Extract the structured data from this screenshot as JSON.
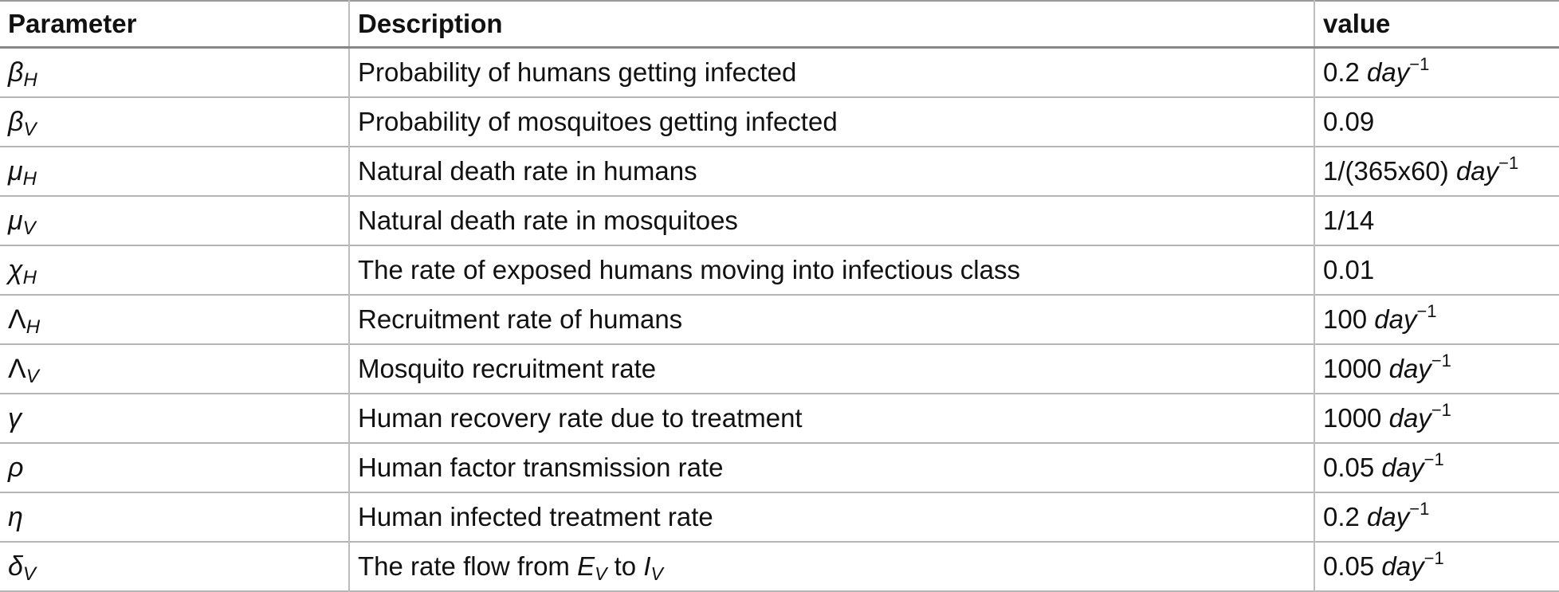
{
  "table": {
    "headers": {
      "parameter": "Parameter",
      "description": "Description",
      "value": "value"
    },
    "rows": [
      {
        "symbol": "β",
        "subscript": "H",
        "description": "Probability of humans getting infected",
        "value": "0.2",
        "unit": "day",
        "exponent": "−1"
      },
      {
        "symbol": "β",
        "subscript": "V",
        "description": "Probability of mosquitoes getting infected",
        "value": "0.09"
      },
      {
        "symbol": "μ",
        "subscript": "H",
        "description": "Natural death rate in humans",
        "value": "1/(365x60)",
        "unit": "day",
        "exponent": "−1"
      },
      {
        "symbol": "μ",
        "subscript": "V",
        "description": "Natural death rate in mosquitoes",
        "value": "1/14"
      },
      {
        "symbol": "χ",
        "subscript": "H",
        "description": "The rate of exposed humans moving into infectious class",
        "value": "0.01"
      },
      {
        "symbol": "Λ",
        "subscript": "H",
        "description": "Recruitment rate of humans",
        "value": "100",
        "unit": "day",
        "exponent": "−1"
      },
      {
        "symbol": "Λ",
        "subscript": "V",
        "description": "Mosquito recruitment rate",
        "value": "1000",
        "unit": "day",
        "exponent": "−1"
      },
      {
        "symbol": "γ",
        "description": "Human recovery rate due to treatment",
        "value": "1000",
        "unit": "day",
        "exponent": "−1"
      },
      {
        "symbol": "ρ",
        "description": "Human factor transmission rate",
        "value": "0.05",
        "unit": "day",
        "exponent": "−1"
      },
      {
        "symbol": "η",
        "description": "Human infected treatment rate",
        "value": "0.2",
        "unit": "day",
        "exponent": "−1"
      },
      {
        "symbol": "δ",
        "subscript": "V",
        "description": "The rate flow from ",
        "desc_var1": "E",
        "desc_var1_sub": "V",
        "desc_mid": " to ",
        "desc_var2": "I",
        "desc_var2_sub": "V",
        "value": "0.05",
        "unit": "day",
        "exponent": "−1"
      }
    ]
  }
}
